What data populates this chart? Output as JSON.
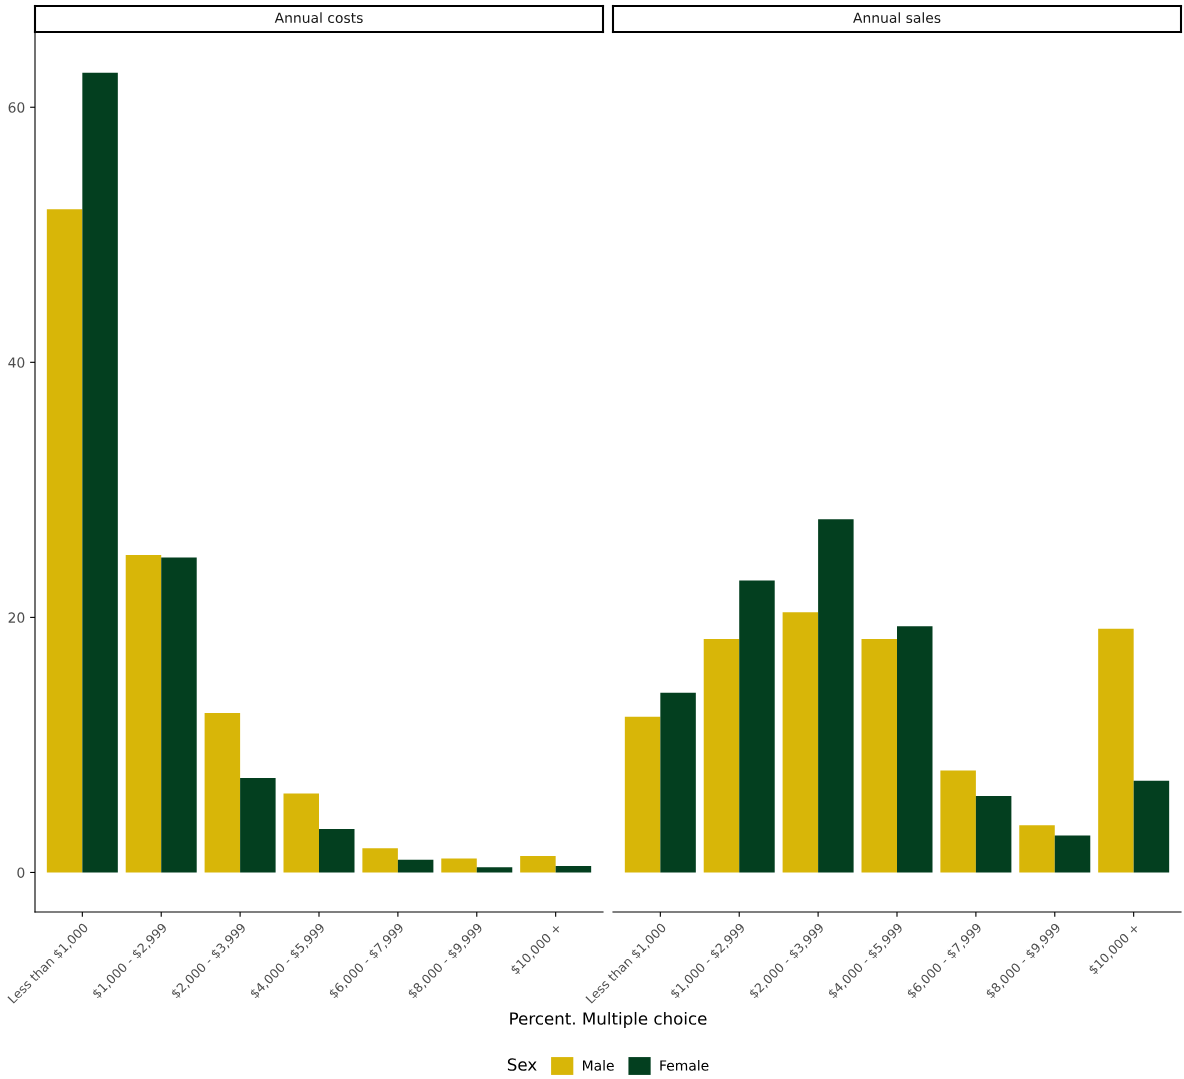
{
  "chart_data": [
    {
      "type": "bar",
      "title": "Annual costs",
      "xlabel": "Percent. Multiple choice",
      "categories": [
        "Less than $1,000",
        "$1,000 - $2,999",
        "$2,000 - $3,999",
        "$4,000 - $5,999",
        "$6,000 - $7,999",
        "$8,000 - $9,999",
        "$10,000 +"
      ],
      "series": [
        {
          "color": "#d8b608",
          "values": [
            52.0,
            24.9,
            12.5,
            6.2,
            1.9,
            1.1,
            1.3
          ]
        },
        {
          "color": "#033f1f",
          "values": [
            62.7,
            24.7,
            7.4,
            3.4,
            1.0,
            0.4,
            0.5
          ]
        }
      ],
      "ylim": [
        -3.1,
        65.9
      ],
      "yticks": [
        0,
        20,
        40,
        60
      ],
      "grid": false
    },
    {
      "type": "bar",
      "title": "Annual sales",
      "categories": [
        "Less than $1,000",
        "$1,000 - $2,999",
        "$2,000 - $3,999",
        "$4,000 - $5,999",
        "$6,000 - $7,999",
        "$8,000 - $9,999",
        "$10,000 +"
      ],
      "series": [
        {
          "name": "Male",
          "color": "#d8b608",
          "values": [
            12.2,
            18.3,
            20.4,
            18.3,
            8.0,
            3.7,
            19.1
          ]
        },
        {
          "name": "Female",
          "color": "#033f1f",
          "values": [
            14.1,
            22.9,
            27.7,
            19.3,
            6.0,
            2.9,
            7.2
          ]
        }
      ],
      "ylim": [
        -3.1,
        65.9
      ],
      "yticks": [
        0,
        20,
        40,
        60
      ],
      "tick_labels": "x",
      "grid": false,
      "legend": "bottom",
      "legend_title": "Sex"
    }
  ]
}
